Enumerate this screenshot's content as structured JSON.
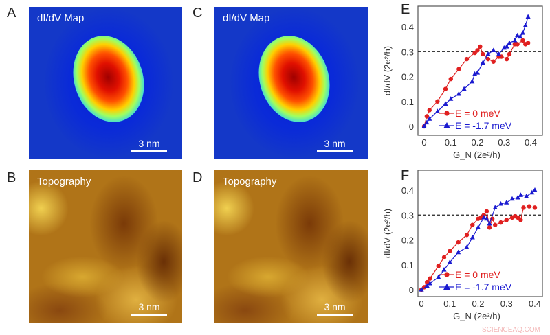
{
  "panels": {
    "A": {
      "letter": "A",
      "label": "dI/dV Map",
      "scale": "3 nm"
    },
    "B": {
      "letter": "B",
      "label": "Topography",
      "scale": "3 nm"
    },
    "C": {
      "letter": "C",
      "label": "dI/dV  Map",
      "scale": "3 nm"
    },
    "D": {
      "letter": "D",
      "label": "Topography",
      "scale": "3 nm"
    }
  },
  "watermark": "SCIENCEAQ.COM",
  "chart_data": [
    {
      "panel": "E",
      "type": "line",
      "xlabel": "G_N (2e²/h)",
      "ylabel": "dI/dV (2e²/h)",
      "xlim": [
        -0.02,
        0.41
      ],
      "ylim": [
        -0.02,
        0.47
      ],
      "xticks": [
        "0",
        "0.1",
        "0.2",
        "0.3",
        "0.4"
      ],
      "yticks": [
        "0",
        "0.1",
        "0.2",
        "0.3",
        "0.4"
      ],
      "reference_line": 0.3,
      "legend": "bottom-right",
      "series": [
        {
          "name": "E =  0 meV",
          "color": "#e02020",
          "marker": "circle",
          "points": [
            [
              0,
              0
            ],
            [
              0.01,
              0.04
            ],
            [
              0.02,
              0.065
            ],
            [
              0.05,
              0.1
            ],
            [
              0.08,
              0.15
            ],
            [
              0.1,
              0.19
            ],
            [
              0.13,
              0.23
            ],
            [
              0.16,
              0.27
            ],
            [
              0.19,
              0.295
            ],
            [
              0.2,
              0.305
            ],
            [
              0.21,
              0.32
            ],
            [
              0.22,
              0.29
            ],
            [
              0.24,
              0.27
            ],
            [
              0.26,
              0.26
            ],
            [
              0.28,
              0.28
            ],
            [
              0.29,
              0.28
            ],
            [
              0.31,
              0.27
            ],
            [
              0.32,
              0.29
            ],
            [
              0.34,
              0.33
            ],
            [
              0.35,
              0.33
            ],
            [
              0.37,
              0.345
            ],
            [
              0.38,
              0.33
            ],
            [
              0.39,
              0.335
            ]
          ]
        },
        {
          "name": "E = -1.7 meV",
          "color": "#1a1ad0",
          "marker": "triangle",
          "points": [
            [
              0,
              0
            ],
            [
              0.01,
              0.015
            ],
            [
              0.02,
              0.03
            ],
            [
              0.05,
              0.06
            ],
            [
              0.08,
              0.09
            ],
            [
              0.1,
              0.11
            ],
            [
              0.13,
              0.13
            ],
            [
              0.15,
              0.15
            ],
            [
              0.18,
              0.18
            ],
            [
              0.19,
              0.21
            ],
            [
              0.2,
              0.215
            ],
            [
              0.22,
              0.255
            ],
            [
              0.24,
              0.29
            ],
            [
              0.26,
              0.305
            ],
            [
              0.28,
              0.29
            ],
            [
              0.3,
              0.315
            ],
            [
              0.31,
              0.32
            ],
            [
              0.32,
              0.335
            ],
            [
              0.34,
              0.345
            ],
            [
              0.35,
              0.365
            ],
            [
              0.36,
              0.36
            ],
            [
              0.37,
              0.375
            ],
            [
              0.38,
              0.405
            ],
            [
              0.39,
              0.44
            ]
          ]
        }
      ]
    },
    {
      "panel": "F",
      "type": "line",
      "xlabel": "G_N (2e²/h)",
      "ylabel": "dI/dV (2e²/h)",
      "xlim": [
        -0.01,
        0.43
      ],
      "ylim": [
        -0.02,
        0.47
      ],
      "xticks": [
        "0",
        "0.1",
        "0.2",
        "0.3",
        "0.4"
      ],
      "yticks": [
        "0",
        "0.1",
        "0.2",
        "0.3",
        "0.4"
      ],
      "reference_line": 0.3,
      "legend": "bottom-right",
      "series": [
        {
          "name": "E =  0 meV",
          "color": "#e02020",
          "marker": "circle",
          "points": [
            [
              0,
              0
            ],
            [
              0.01,
              0.01
            ],
            [
              0.02,
              0.03
            ],
            [
              0.03,
              0.045
            ],
            [
              0.06,
              0.095
            ],
            [
              0.08,
              0.13
            ],
            [
              0.1,
              0.155
            ],
            [
              0.13,
              0.19
            ],
            [
              0.16,
              0.22
            ],
            [
              0.18,
              0.26
            ],
            [
              0.2,
              0.285
            ],
            [
              0.21,
              0.29
            ],
            [
              0.22,
              0.3
            ],
            [
              0.23,
              0.315
            ],
            [
              0.24,
              0.25
            ],
            [
              0.25,
              0.285
            ],
            [
              0.26,
              0.26
            ],
            [
              0.28,
              0.27
            ],
            [
              0.3,
              0.28
            ],
            [
              0.32,
              0.29
            ],
            [
              0.33,
              0.295
            ],
            [
              0.34,
              0.29
            ],
            [
              0.35,
              0.28
            ],
            [
              0.36,
              0.33
            ],
            [
              0.38,
              0.335
            ],
            [
              0.4,
              0.33
            ]
          ]
        },
        {
          "name": "E = -1.7 meV",
          "color": "#1a1ad0",
          "marker": "triangle",
          "points": [
            [
              0,
              0
            ],
            [
              0.02,
              0.015
            ],
            [
              0.03,
              0.025
            ],
            [
              0.06,
              0.05
            ],
            [
              0.08,
              0.08
            ],
            [
              0.1,
              0.11
            ],
            [
              0.13,
              0.15
            ],
            [
              0.16,
              0.17
            ],
            [
              0.18,
              0.21
            ],
            [
              0.2,
              0.25
            ],
            [
              0.22,
              0.29
            ],
            [
              0.23,
              0.285
            ],
            [
              0.24,
              0.265
            ],
            [
              0.26,
              0.33
            ],
            [
              0.28,
              0.345
            ],
            [
              0.3,
              0.35
            ],
            [
              0.32,
              0.365
            ],
            [
              0.34,
              0.37
            ],
            [
              0.35,
              0.38
            ],
            [
              0.37,
              0.375
            ],
            [
              0.39,
              0.39
            ],
            [
              0.4,
              0.4
            ]
          ]
        }
      ]
    }
  ]
}
